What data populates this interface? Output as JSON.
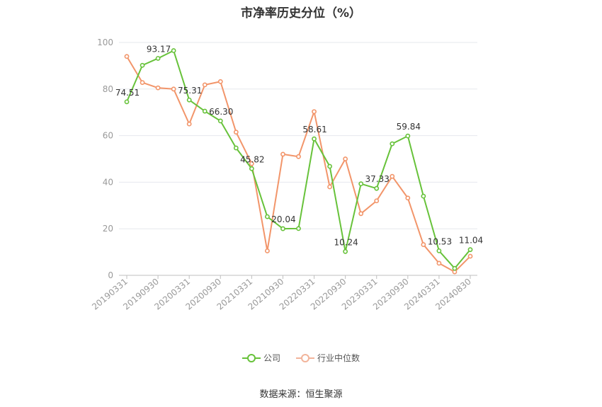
{
  "title": "市净率历史分位（%）",
  "source": "数据来源：恒生聚源",
  "chart_data": {
    "type": "line",
    "y_ticks": [
      0,
      20,
      40,
      60,
      80,
      100
    ],
    "ylim": [
      0,
      100
    ],
    "x": [
      "20190331",
      "20190630",
      "20190930",
      "20191231",
      "20200331",
      "20200630",
      "20200930",
      "20201231",
      "20210331",
      "20210630",
      "20210930",
      "20211231",
      "20220331",
      "20220630",
      "20220930",
      "20221231",
      "20230331",
      "20230630",
      "20230930",
      "20231231",
      "20240331",
      "20240630",
      "20240830"
    ],
    "x_tick_labels": [
      "20190331",
      "20190930",
      "20200331",
      "20200930",
      "20210331",
      "20210930",
      "20220331",
      "20220930",
      "20230331",
      "20230930",
      "20240331",
      "20240830"
    ],
    "series": [
      {
        "name": "公司",
        "color": "#67c23a",
        "values": [
          74.51,
          90.2,
          93.17,
          96.5,
          75.31,
          70.5,
          66.3,
          54.7,
          45.82,
          25.2,
          20.04,
          20.1,
          58.61,
          46.8,
          10.24,
          39.3,
          37.33,
          56.5,
          59.84,
          34.0,
          10.53,
          3.0,
          11.04
        ],
        "data_labels": {
          "0": "74.51",
          "2": "93.17",
          "4": "75.31",
          "6": "66.30",
          "8": "45.82",
          "10": "20.04",
          "12": "58.61",
          "14": "10.24",
          "16": "37.33",
          "18": "59.84",
          "20": "10.53",
          "22": "11.04"
        }
      },
      {
        "name": "行业中位数",
        "color": "#f2956a",
        "values": [
          94.0,
          82.8,
          80.5,
          80.0,
          65.0,
          81.8,
          83.2,
          61.5,
          48.0,
          10.5,
          52.0,
          51.0,
          70.3,
          38.0,
          50.0,
          26.5,
          32.0,
          42.5,
          33.2,
          13.2,
          5.2,
          1.5,
          8.2
        ]
      }
    ],
    "legend_position": "bottom",
    "grid": "horizontal"
  }
}
